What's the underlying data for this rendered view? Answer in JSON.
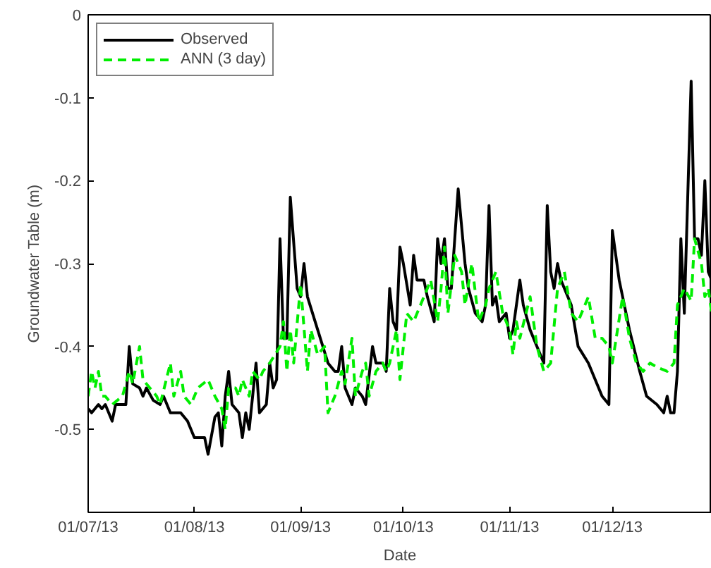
{
  "chart_data": {
    "type": "line",
    "xlabel": "Date",
    "ylabel": "Groundwater Table (m)",
    "xlim": [
      "2013-07-01",
      "2013-12-30"
    ],
    "ylim": [
      -0.6,
      0
    ],
    "xticks": [
      {
        "value": "2013-07-01",
        "label": "01/07/13"
      },
      {
        "value": "2013-08-01",
        "label": "01/08/13"
      },
      {
        "value": "2013-09-01",
        "label": "01/09/13"
      },
      {
        "value": "2013-10-01",
        "label": "01/10/13"
      },
      {
        "value": "2013-11-01",
        "label": "01/11/13"
      },
      {
        "value": "2013-12-01",
        "label": "01/12/13"
      }
    ],
    "yticks": [
      0,
      -0.1,
      -0.2,
      -0.3,
      -0.4,
      -0.5,
      {
        "value": -0.6,
        "label": null
      }
    ],
    "grid": false,
    "legend": "top left",
    "series": [
      {
        "name": "Observed",
        "color": "#000000",
        "line_style": "solid",
        "x": [
          "2013-07-01",
          "2013-07-02",
          "2013-07-04",
          "2013-07-05",
          "2013-07-06",
          "2013-07-07",
          "2013-07-08",
          "2013-07-09",
          "2013-07-10",
          "2013-07-12",
          "2013-07-13",
          "2013-07-14",
          "2013-07-16",
          "2013-07-17",
          "2013-07-18",
          "2013-07-20",
          "2013-07-22",
          "2013-07-23",
          "2013-07-25",
          "2013-07-28",
          "2013-07-30",
          "2013-08-01",
          "2013-08-04",
          "2013-08-05",
          "2013-08-07",
          "2013-08-08",
          "2013-08-09",
          "2013-08-10",
          "2013-08-11",
          "2013-08-12",
          "2013-08-14",
          "2013-08-15",
          "2013-08-16",
          "2013-08-17",
          "2013-08-19",
          "2013-08-20",
          "2013-08-22",
          "2013-08-23",
          "2013-08-24",
          "2013-08-25",
          "2013-08-26",
          "2013-08-27",
          "2013-08-28",
          "2013-08-29",
          "2013-08-31",
          "2013-09-01",
          "2013-09-02",
          "2013-09-03",
          "2013-09-06",
          "2013-09-09",
          "2013-09-11",
          "2013-09-12",
          "2013-09-13",
          "2013-09-14",
          "2013-09-16",
          "2013-09-17",
          "2013-09-19",
          "2013-09-20",
          "2013-09-22",
          "2013-09-23",
          "2013-09-25",
          "2013-09-26",
          "2013-09-27",
          "2013-09-28",
          "2013-09-29",
          "2013-09-30",
          "2013-10-01",
          "2013-10-03",
          "2013-10-04",
          "2013-10-05",
          "2013-10-07",
          "2013-10-08",
          "2013-10-10",
          "2013-10-11",
          "2013-10-12",
          "2013-10-13",
          "2013-10-14",
          "2013-10-15",
          "2013-10-17",
          "2013-10-19",
          "2013-10-20",
          "2013-10-22",
          "2013-10-24",
          "2013-10-25",
          "2013-10-26",
          "2013-10-27",
          "2013-10-28",
          "2013-10-29",
          "2013-10-31",
          "2013-11-01",
          "2013-11-02",
          "2013-11-04",
          "2013-11-05",
          "2013-11-07",
          "2013-11-09",
          "2013-11-11",
          "2013-11-12",
          "2013-11-13",
          "2013-11-14",
          "2013-11-15",
          "2013-11-16",
          "2013-11-19",
          "2013-11-21",
          "2013-11-24",
          "2013-11-26",
          "2013-11-28",
          "2013-11-30",
          "2013-12-01",
          "2013-12-03",
          "2013-12-06",
          "2013-12-09",
          "2013-12-11",
          "2013-12-14",
          "2013-12-16",
          "2013-12-17",
          "2013-12-18",
          "2013-12-19",
          "2013-12-20",
          "2013-12-21",
          "2013-12-22",
          "2013-12-24",
          "2013-12-25",
          "2013-12-26",
          "2013-12-27",
          "2013-12-28",
          "2013-12-29",
          "2013-12-30"
        ],
        "values": [
          -0.475,
          -0.48,
          -0.47,
          -0.475,
          -0.47,
          -0.48,
          -0.49,
          -0.47,
          -0.47,
          -0.47,
          -0.4,
          -0.445,
          -0.45,
          -0.46,
          -0.45,
          -0.465,
          -0.47,
          -0.46,
          -0.48,
          -0.48,
          -0.49,
          -0.51,
          -0.51,
          -0.53,
          -0.485,
          -0.48,
          -0.52,
          -0.46,
          -0.43,
          -0.47,
          -0.48,
          -0.51,
          -0.48,
          -0.5,
          -0.42,
          -0.48,
          -0.47,
          -0.42,
          -0.45,
          -0.44,
          -0.27,
          -0.39,
          -0.39,
          -0.22,
          -0.33,
          -0.34,
          -0.3,
          -0.34,
          -0.38,
          -0.42,
          -0.43,
          -0.43,
          -0.4,
          -0.45,
          -0.47,
          -0.45,
          -0.46,
          -0.47,
          -0.4,
          -0.42,
          -0.42,
          -0.43,
          -0.33,
          -0.37,
          -0.38,
          -0.28,
          -0.3,
          -0.35,
          -0.29,
          -0.32,
          -0.32,
          -0.34,
          -0.37,
          -0.27,
          -0.3,
          -0.27,
          -0.33,
          -0.33,
          -0.21,
          -0.3,
          -0.33,
          -0.36,
          -0.37,
          -0.35,
          -0.23,
          -0.35,
          -0.34,
          -0.37,
          -0.36,
          -0.39,
          -0.38,
          -0.32,
          -0.35,
          -0.38,
          -0.4,
          -0.42,
          -0.23,
          -0.31,
          -0.33,
          -0.3,
          -0.32,
          -0.35,
          -0.4,
          -0.42,
          -0.44,
          -0.46,
          -0.47,
          -0.26,
          -0.32,
          -0.38,
          -0.43,
          -0.46,
          -0.47,
          -0.48,
          -0.46,
          -0.48,
          -0.48,
          -0.43,
          -0.27,
          -0.36,
          -0.08,
          -0.27,
          -0.27,
          -0.29,
          -0.2,
          -0.31,
          -0.32
        ]
      },
      {
        "name": "ANN (3 day)",
        "color": "#00ee00",
        "line_style": "dashed",
        "x": [
          "2013-07-01",
          "2013-07-02",
          "2013-07-03",
          "2013-07-04",
          "2013-07-05",
          "2013-07-06",
          "2013-07-08",
          "2013-07-11",
          "2013-07-13",
          "2013-07-14",
          "2013-07-16",
          "2013-07-17",
          "2013-07-19",
          "2013-07-21",
          "2013-07-22",
          "2013-07-25",
          "2013-07-26",
          "2013-07-28",
          "2013-07-29",
          "2013-07-31",
          "2013-08-02",
          "2013-08-05",
          "2013-08-07",
          "2013-08-09",
          "2013-08-10",
          "2013-08-11",
          "2013-08-13",
          "2013-08-14",
          "2013-08-15",
          "2013-08-16",
          "2013-08-17",
          "2013-08-18",
          "2013-08-20",
          "2013-08-21",
          "2013-08-23",
          "2013-08-26",
          "2013-08-27",
          "2013-08-28",
          "2013-08-29",
          "2013-08-30",
          "2013-09-01",
          "2013-09-03",
          "2013-09-04",
          "2013-09-06",
          "2013-09-08",
          "2013-09-09",
          "2013-09-11",
          "2013-09-13",
          "2013-09-14",
          "2013-09-16",
          "2013-09-17",
          "2013-09-19",
          "2013-09-20",
          "2013-09-21",
          "2013-09-23",
          "2013-09-25",
          "2013-09-26",
          "2013-09-27",
          "2013-09-29",
          "2013-09-30",
          "2013-10-01",
          "2013-10-02",
          "2013-10-04",
          "2013-10-05",
          "2013-10-07",
          "2013-10-09",
          "2013-10-11",
          "2013-10-12",
          "2013-10-13",
          "2013-10-14",
          "2013-10-16",
          "2013-10-18",
          "2013-10-19",
          "2013-10-21",
          "2013-10-23",
          "2013-10-25",
          "2013-10-26",
          "2013-10-28",
          "2013-10-30",
          "2013-11-01",
          "2013-11-02",
          "2013-11-03",
          "2013-11-04",
          "2013-11-07",
          "2013-11-09",
          "2013-11-11",
          "2013-11-13",
          "2013-11-15",
          "2013-11-17",
          "2013-11-19",
          "2013-11-21",
          "2013-11-22",
          "2013-11-24",
          "2013-11-26",
          "2013-11-28",
          "2013-11-30",
          "2013-12-01",
          "2013-12-04",
          "2013-12-06",
          "2013-12-08",
          "2013-12-10",
          "2013-12-12",
          "2013-12-14",
          "2013-12-17",
          "2013-12-19",
          "2013-12-20",
          "2013-12-22",
          "2013-12-24",
          "2013-12-25",
          "2013-12-27",
          "2013-12-28",
          "2013-12-29",
          "2013-12-30"
        ],
        "values": [
          -0.46,
          -0.43,
          -0.45,
          -0.43,
          -0.46,
          -0.46,
          -0.47,
          -0.46,
          -0.43,
          -0.445,
          -0.4,
          -0.44,
          -0.45,
          -0.46,
          -0.47,
          -0.42,
          -0.46,
          -0.43,
          -0.46,
          -0.47,
          -0.45,
          -0.44,
          -0.46,
          -0.475,
          -0.5,
          -0.45,
          -0.45,
          -0.46,
          -0.44,
          -0.45,
          -0.46,
          -0.43,
          -0.44,
          -0.43,
          -0.42,
          -0.4,
          -0.37,
          -0.43,
          -0.38,
          -0.42,
          -0.325,
          -0.43,
          -0.38,
          -0.41,
          -0.4,
          -0.48,
          -0.46,
          -0.43,
          -0.445,
          -0.39,
          -0.46,
          -0.43,
          -0.42,
          -0.46,
          -0.43,
          -0.42,
          -0.43,
          -0.42,
          -0.38,
          -0.44,
          -0.4,
          -0.36,
          -0.37,
          -0.36,
          -0.34,
          -0.32,
          -0.37,
          -0.33,
          -0.28,
          -0.36,
          -0.29,
          -0.31,
          -0.35,
          -0.3,
          -0.37,
          -0.35,
          -0.33,
          -0.31,
          -0.36,
          -0.38,
          -0.41,
          -0.37,
          -0.39,
          -0.34,
          -0.4,
          -0.43,
          -0.42,
          -0.33,
          -0.31,
          -0.36,
          -0.37,
          -0.36,
          -0.34,
          -0.39,
          -0.39,
          -0.4,
          -0.42,
          -0.34,
          -0.39,
          -0.42,
          -0.43,
          -0.42,
          -0.425,
          -0.43,
          -0.42,
          -0.35,
          -0.33,
          -0.345,
          -0.27,
          -0.3,
          -0.34,
          -0.33,
          -0.36
        ]
      }
    ]
  }
}
